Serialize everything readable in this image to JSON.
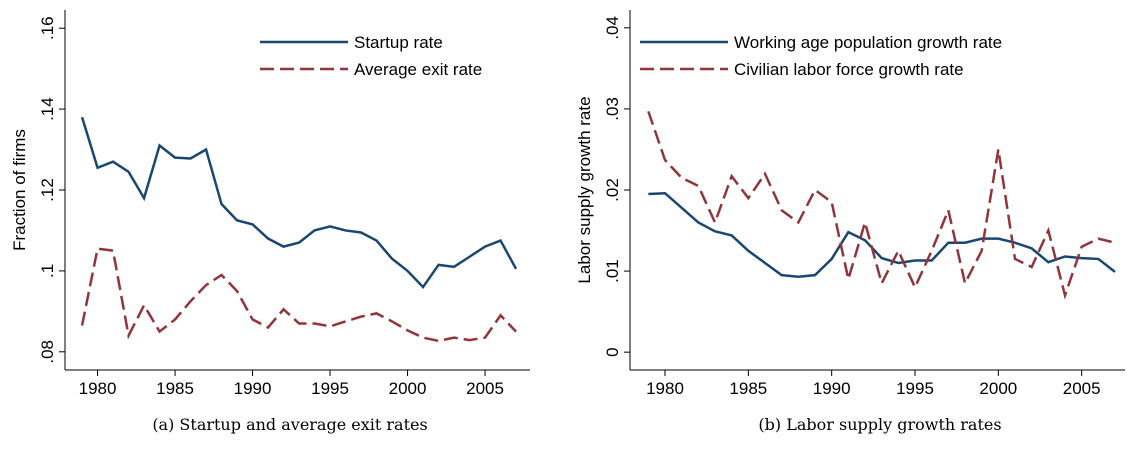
{
  "chart_data": [
    {
      "type": "line",
      "caption": "(a) Startup and average exit rates",
      "ylabel": "Fraction of firms",
      "x": [
        1979,
        1980,
        1981,
        1982,
        1983,
        1984,
        1985,
        1986,
        1987,
        1988,
        1989,
        1990,
        1991,
        1992,
        1993,
        1994,
        1995,
        1996,
        1997,
        1998,
        1999,
        2000,
        2001,
        2002,
        2003,
        2004,
        2005,
        2006,
        2007
      ],
      "xlim": [
        1977.9,
        2007.9
      ],
      "xticks": [
        1980,
        1985,
        1990,
        1995,
        2000,
        2005
      ],
      "ylim": [
        0.0755,
        0.1645
      ],
      "yticks": [
        {
          "value": 0.08,
          "label": ".08"
        },
        {
          "value": 0.1,
          "label": ".1"
        },
        {
          "value": 0.12,
          "label": ".12"
        },
        {
          "value": 0.14,
          "label": ".14"
        },
        {
          "value": 0.16,
          "label": ".16"
        }
      ],
      "series": [
        {
          "name": "Startup rate",
          "color": "#1a476f",
          "line_style": "solid",
          "values": [
            0.138,
            0.1255,
            0.127,
            0.1245,
            0.118,
            0.131,
            0.128,
            0.1278,
            0.13,
            0.1165,
            0.1125,
            0.1115,
            0.108,
            0.106,
            0.107,
            0.11,
            0.111,
            0.11,
            0.1095,
            0.1075,
            0.103,
            0.1,
            0.096,
            0.1015,
            0.101,
            0.1035,
            0.106,
            0.1075,
            0.1005
          ]
        },
        {
          "name": "Average exit rate",
          "color": "#90353b",
          "line_style": "dashed",
          "values": [
            0.0865,
            0.1055,
            0.105,
            0.084,
            0.0915,
            0.085,
            0.088,
            0.0925,
            0.0965,
            0.099,
            0.095,
            0.088,
            0.086,
            0.0905,
            0.087,
            0.087,
            0.0863,
            0.0875,
            0.0887,
            0.0895,
            0.0875,
            0.0853,
            0.0835,
            0.0827,
            0.0835,
            0.0829,
            0.0835,
            0.089,
            0.085
          ]
        }
      ]
    },
    {
      "type": "line",
      "caption": "(b) Labor supply growth rates",
      "ylabel": "Labor supply growth rate",
      "x": [
        1979,
        1980,
        1981,
        1982,
        1983,
        1984,
        1985,
        1986,
        1987,
        1988,
        1989,
        1990,
        1991,
        1992,
        1993,
        1994,
        1995,
        1996,
        1997,
        1998,
        1999,
        2000,
        2001,
        2002,
        2003,
        2004,
        2005,
        2006,
        2007
      ],
      "xlim": [
        1977.9,
        2007.6
      ],
      "xticks": [
        1980,
        1985,
        1990,
        1995,
        2000,
        2005
      ],
      "ylim": [
        -0.0022,
        0.0422
      ],
      "yticks": [
        0,
        {
          "value": 0.01,
          "label": ".01"
        },
        {
          "value": 0.02,
          "label": ".02"
        },
        {
          "value": 0.03,
          "label": ".03"
        },
        {
          "value": 0.04,
          "label": ".04"
        }
      ],
      "series": [
        {
          "name": "Working age population growth rate",
          "color": "#1a476f",
          "line_style": "solid",
          "values": [
            0.0195,
            0.0196,
            0.0178,
            0.016,
            0.0149,
            0.0144,
            0.0125,
            0.011,
            0.0095,
            0.0093,
            0.0095,
            0.0115,
            0.0148,
            0.0138,
            0.0116,
            0.011,
            0.0113,
            0.0113,
            0.0135,
            0.0135,
            0.014,
            0.014,
            0.0135,
            0.0128,
            0.0111,
            0.0118,
            0.0116,
            0.0115,
            0.0099
          ]
        },
        {
          "name": "Civilian labor force growth rate",
          "color": "#90353b",
          "line_style": "dashed",
          "values": [
            0.0297,
            0.0237,
            0.0215,
            0.0205,
            0.016,
            0.0217,
            0.019,
            0.022,
            0.0175,
            0.016,
            0.02,
            0.0185,
            0.009,
            0.016,
            0.0085,
            0.0125,
            0.008,
            0.0125,
            0.0175,
            0.0085,
            0.0125,
            0.025,
            0.0115,
            0.0105,
            0.015,
            0.007,
            0.013,
            0.014,
            0.0135
          ]
        }
      ]
    }
  ]
}
